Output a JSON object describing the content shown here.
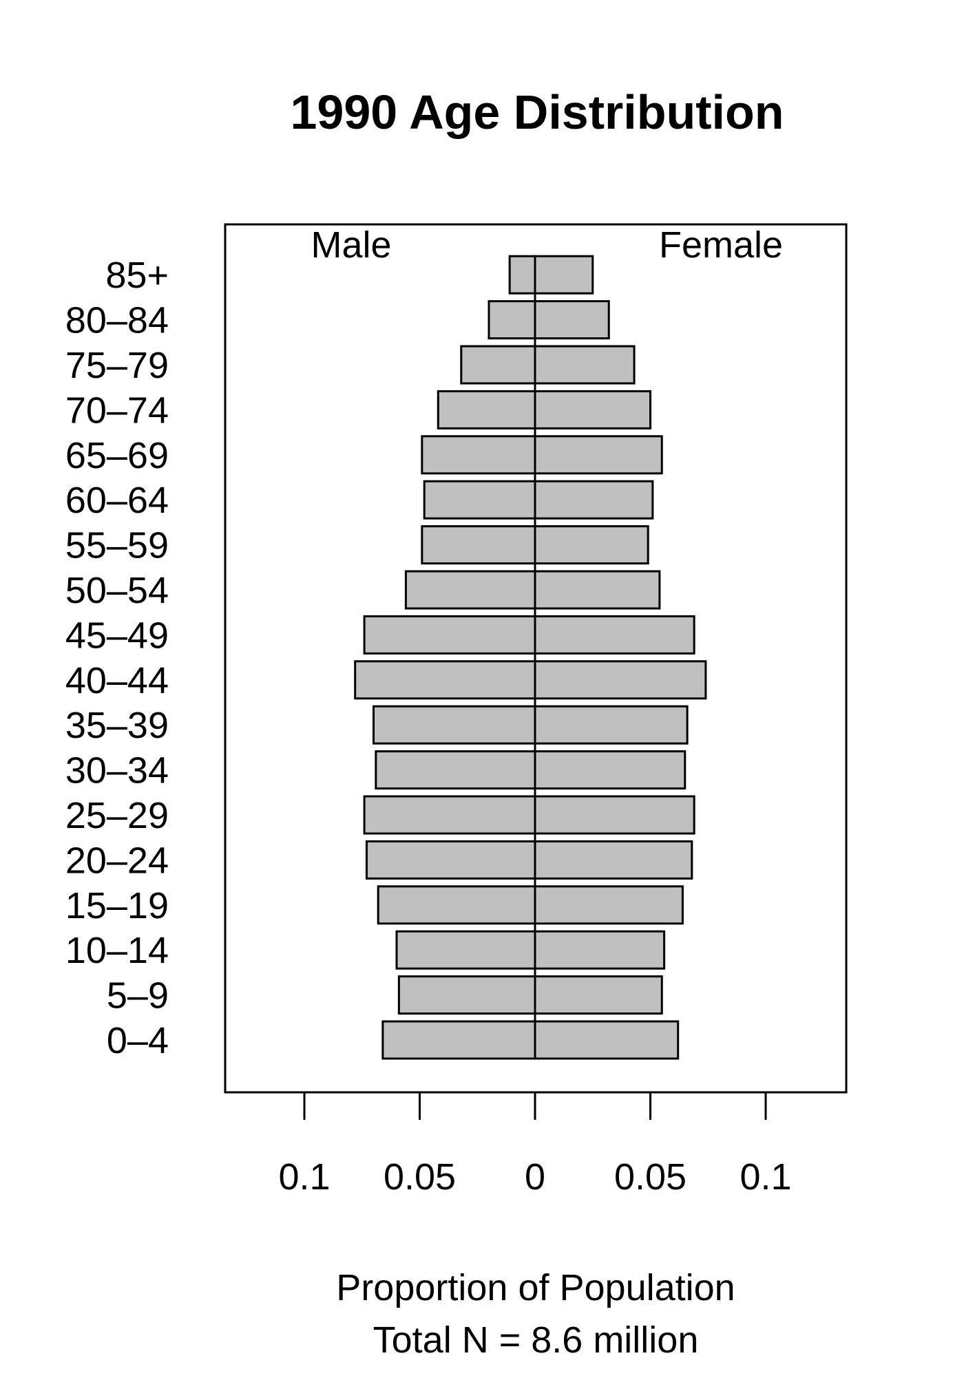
{
  "chart_data": {
    "type": "bar",
    "orientation": "horizontal",
    "layout": "population-pyramid",
    "title": "1990 Age Distribution",
    "xlabel": "Proportion of Population",
    "subtitle": "Total N = 8.6 million",
    "side_labels": {
      "left": "Male",
      "right": "Female"
    },
    "categories": [
      "0–4",
      "5–9",
      "10–14",
      "15–19",
      "20–24",
      "25–29",
      "30–34",
      "35–39",
      "40–44",
      "45–49",
      "50–54",
      "55–59",
      "60–64",
      "65–69",
      "70–74",
      "75–79",
      "80–84",
      "85+"
    ],
    "series": [
      {
        "name": "Male",
        "side": "left",
        "values": [
          0.066,
          0.059,
          0.06,
          0.068,
          0.073,
          0.074,
          0.069,
          0.07,
          0.078,
          0.074,
          0.056,
          0.049,
          0.048,
          0.049,
          0.042,
          0.032,
          0.02,
          0.011
        ]
      },
      {
        "name": "Female",
        "side": "right",
        "values": [
          0.062,
          0.055,
          0.056,
          0.064,
          0.068,
          0.069,
          0.065,
          0.066,
          0.074,
          0.069,
          0.054,
          0.049,
          0.051,
          0.055,
          0.05,
          0.043,
          0.032,
          0.025
        ]
      }
    ],
    "xlim": [
      -0.1,
      0.1
    ],
    "x_ticks": [
      -0.1,
      -0.05,
      0,
      0.05,
      0.1
    ],
    "x_tick_labels": [
      "0.1",
      "0.05",
      "0",
      "0.05",
      "0.1"
    ],
    "bar_color": "#c0c0c0",
    "outline_color": "#000000",
    "grid": false
  }
}
